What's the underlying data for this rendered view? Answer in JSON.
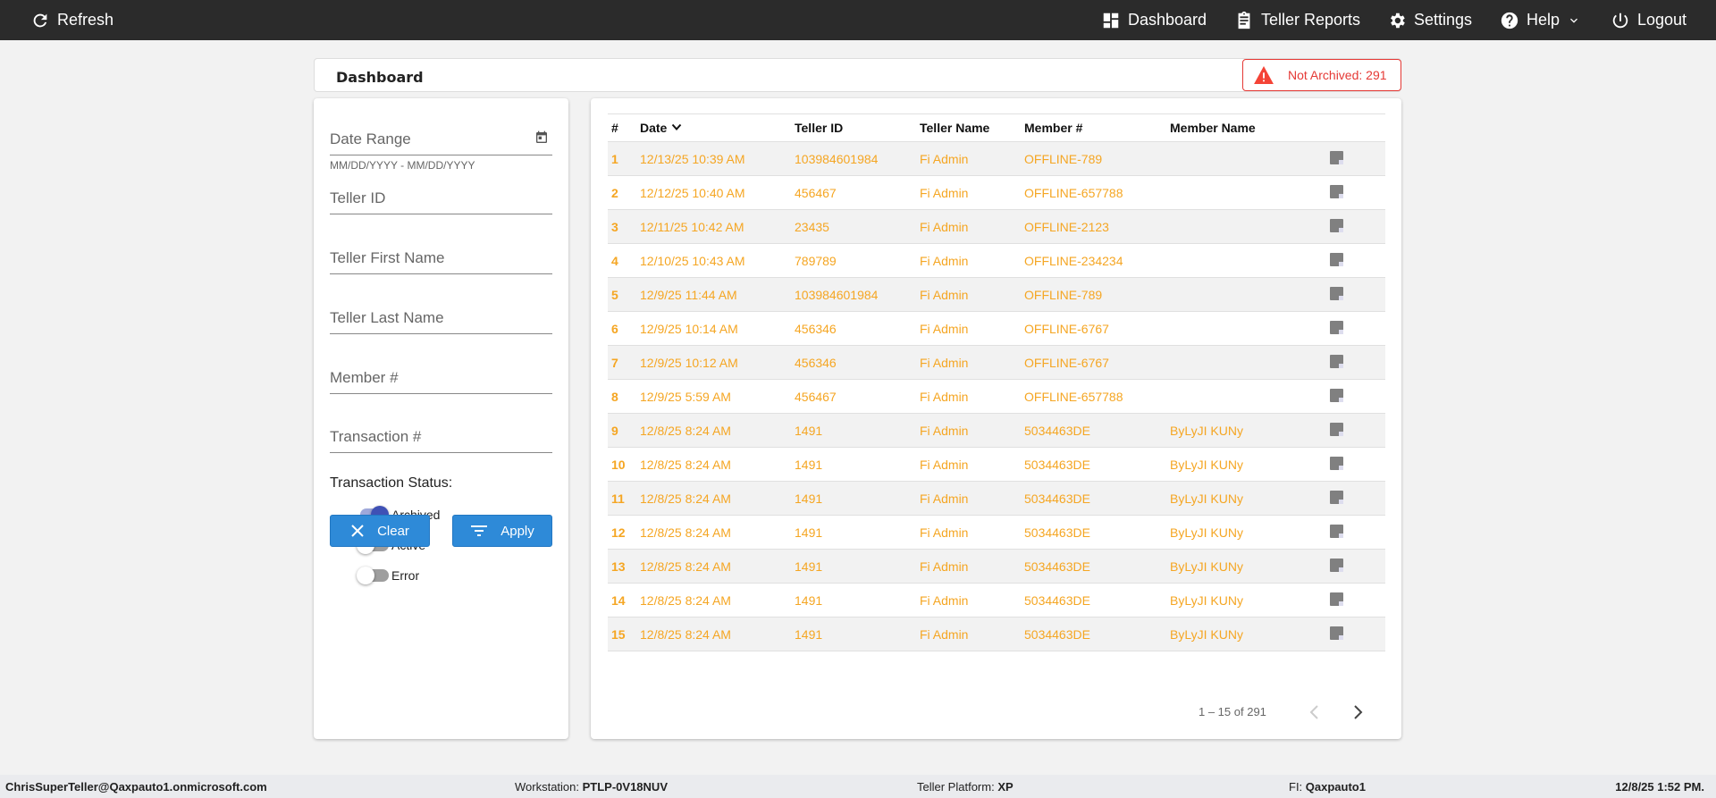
{
  "topbar": {
    "refresh": "Refresh",
    "dashboard": "Dashboard",
    "teller_reports": "Teller Reports",
    "settings": "Settings",
    "help": "Help",
    "logout": "Logout"
  },
  "header": {
    "title": "Dashboard",
    "badge": "Not Archived: 291",
    "badge_color": "#e53935"
  },
  "filters": {
    "date_range": "Date Range",
    "date_hint": "MM/DD/YYYY - MM/DD/YYYY",
    "teller_id": "Teller ID",
    "first_name": "Teller First Name",
    "last_name": "Teller Last Name",
    "member": "Member #",
    "transaction": "Transaction #",
    "status_label": "Transaction Status:",
    "statuses": [
      {
        "label": "Archived",
        "on": true
      },
      {
        "label": "Active",
        "on": false
      },
      {
        "label": "Error",
        "on": false
      }
    ],
    "clear": "Clear",
    "apply": "Apply"
  },
  "table": {
    "columns": [
      "#",
      "Date",
      "Teller ID",
      "Teller Name",
      "Member #",
      "Member Name"
    ],
    "rows": [
      [
        "1",
        "12/13/25 10:39 AM",
        "103984601984",
        "Fi Admin",
        "OFFLINE-789",
        ""
      ],
      [
        "2",
        "12/12/25 10:40 AM",
        "456467",
        "Fi Admin",
        "OFFLINE-657788",
        ""
      ],
      [
        "3",
        "12/11/25 10:42 AM",
        "23435",
        "Fi Admin",
        "OFFLINE-2123",
        ""
      ],
      [
        "4",
        "12/10/25 10:43 AM",
        "789789",
        "Fi Admin",
        "OFFLINE-234234",
        ""
      ],
      [
        "5",
        "12/9/25 11:44 AM",
        "103984601984",
        "Fi Admin",
        "OFFLINE-789",
        ""
      ],
      [
        "6",
        "12/9/25 10:14 AM",
        "456346",
        "Fi Admin",
        "OFFLINE-6767",
        ""
      ],
      [
        "7",
        "12/9/25 10:12 AM",
        "456346",
        "Fi Admin",
        "OFFLINE-6767",
        ""
      ],
      [
        "8",
        "12/9/25 5:59 AM",
        "456467",
        "Fi Admin",
        "OFFLINE-657788",
        ""
      ],
      [
        "9",
        "12/8/25 8:24 AM",
        "1491",
        "Fi Admin",
        "5034463DE",
        "ByLyJI KUNy"
      ],
      [
        "10",
        "12/8/25 8:24 AM",
        "1491",
        "Fi Admin",
        "5034463DE",
        "ByLyJI KUNy"
      ],
      [
        "11",
        "12/8/25 8:24 AM",
        "1491",
        "Fi Admin",
        "5034463DE",
        "ByLyJI KUNy"
      ],
      [
        "12",
        "12/8/25 8:24 AM",
        "1491",
        "Fi Admin",
        "5034463DE",
        "ByLyJI KUNy"
      ],
      [
        "13",
        "12/8/25 8:24 AM",
        "1491",
        "Fi Admin",
        "5034463DE",
        "ByLyJI KUNy"
      ],
      [
        "14",
        "12/8/25 8:24 AM",
        "1491",
        "Fi Admin",
        "5034463DE",
        "ByLyJI KUNy"
      ],
      [
        "15",
        "12/8/25 8:24 AM",
        "1491",
        "Fi Admin",
        "5034463DE",
        "ByLyJI KUNy"
      ]
    ],
    "pagination": "1 – 15 of 291",
    "row_color": "#f5a623"
  },
  "footer": {
    "user": "ChrisSuperTeller@Qaxpauto1.onmicrosoft.com",
    "workstation_label": "Workstation: ",
    "workstation": "PTLP-0V18NUV",
    "platform_label": "Teller Platform: ",
    "platform": "XP",
    "fi_label": "FI: ",
    "fi": "Qaxpauto1",
    "datetime": "12/8/25 1:52 PM."
  }
}
